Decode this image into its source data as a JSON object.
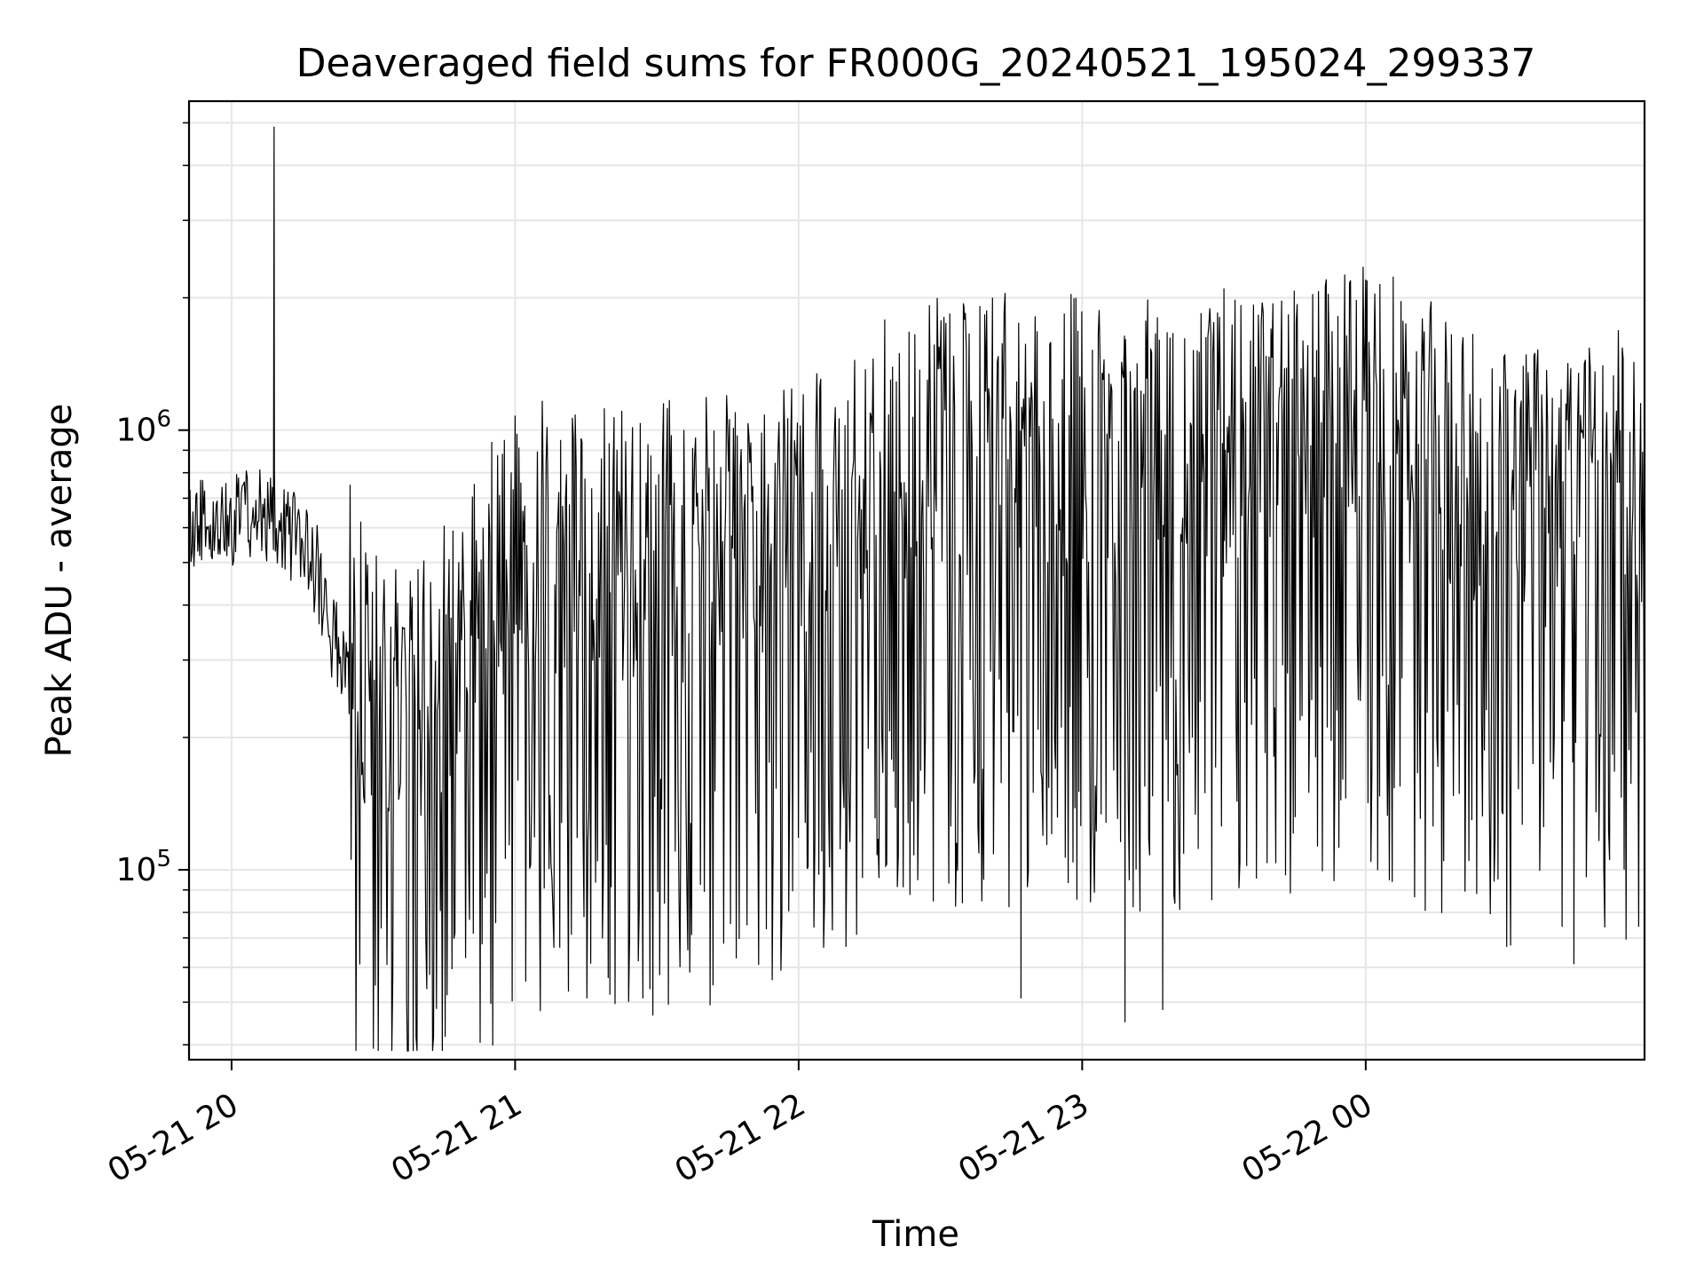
{
  "chart_data": {
    "type": "line",
    "title": "Deaveraged field sums for FR000G_20240521_195024_299337",
    "xlabel": "Time",
    "ylabel": "Peak ADU - average",
    "y_scale": "log",
    "grid": true,
    "legend": "none",
    "xlim": [
      "2024-05-21 19:51",
      "2024-05-22 00:59"
    ],
    "ylim": [
      37000,
      5600000
    ],
    "x_ticks": [
      {
        "time": "2024-05-21 20:00",
        "label": "05-21 20"
      },
      {
        "time": "2024-05-21 21:00",
        "label": "05-21 21"
      },
      {
        "time": "2024-05-21 22:00",
        "label": "05-21 22"
      },
      {
        "time": "2024-05-21 23:00",
        "label": "05-21 23"
      },
      {
        "time": "2024-05-22 00:00",
        "label": "05-22 00"
      }
    ],
    "y_ticks": [
      {
        "value": 100000,
        "base": "10",
        "exp": "5"
      },
      {
        "value": 1000000,
        "base": "10",
        "exp": "6"
      }
    ],
    "series": [
      {
        "color": "#000000",
        "x_start": "2024-05-21 19:51",
        "x_end": "2024-05-22 00:59",
        "anchor_points": [
          {
            "x": "2024-05-21 19:51",
            "y": 600000
          },
          {
            "x": "2024-05-21 20:00",
            "y": 620000
          },
          {
            "x": "2024-05-21 20:09",
            "y": 650000
          },
          {
            "x": "2024-05-21 20:18",
            "y": 480000
          },
          {
            "x": "2024-05-21 20:27",
            "y": 200000
          },
          {
            "x": "2024-05-21 20:36",
            "y": 150000
          },
          {
            "x": "2024-05-21 20:45",
            "y": 200000
          },
          {
            "x": "2024-05-21 21:00",
            "y": 380000
          },
          {
            "x": "2024-05-21 21:20",
            "y": 360000
          },
          {
            "x": "2024-05-21 21:40",
            "y": 380000
          },
          {
            "x": "2024-05-21 22:00",
            "y": 420000
          },
          {
            "x": "2024-05-21 22:20",
            "y": 620000
          },
          {
            "x": "2024-05-21 22:40",
            "y": 650000
          },
          {
            "x": "2024-05-21 23:00",
            "y": 650000
          },
          {
            "x": "2024-05-21 23:20",
            "y": 620000
          },
          {
            "x": "2024-05-21 23:40",
            "y": 640000
          },
          {
            "x": "2024-05-22 00:00",
            "y": 800000
          },
          {
            "x": "2024-05-22 00:20",
            "y": 560000
          },
          {
            "x": "2024-05-22 00:40",
            "y": 480000
          },
          {
            "x": "2024-05-22 00:59",
            "y": 560000
          }
        ],
        "peaks": [
          {
            "x": "2024-05-21 20:09",
            "y": 4900000
          },
          {
            "x": "2024-05-22 00:00",
            "y": 2200000
          },
          {
            "x": "2024-05-22 00:03",
            "y": 2150000
          },
          {
            "x": "2024-05-21 23:30",
            "y": 2100000
          },
          {
            "x": "2024-05-21 22:35",
            "y": 1900000
          }
        ],
        "troughs": [
          {
            "x": "2024-05-21 20:37",
            "y": 51000
          },
          {
            "x": "2024-05-21 21:20",
            "y": 52000
          },
          {
            "x": "2024-05-21 21:27",
            "y": 51000
          },
          {
            "x": "2024-05-21 22:47",
            "y": 51000
          },
          {
            "x": "2024-05-21 23:09",
            "y": 45000
          },
          {
            "x": "2024-05-21 23:17",
            "y": 48000
          },
          {
            "x": "2024-05-22 00:44",
            "y": 61000
          }
        ]
      }
    ]
  }
}
